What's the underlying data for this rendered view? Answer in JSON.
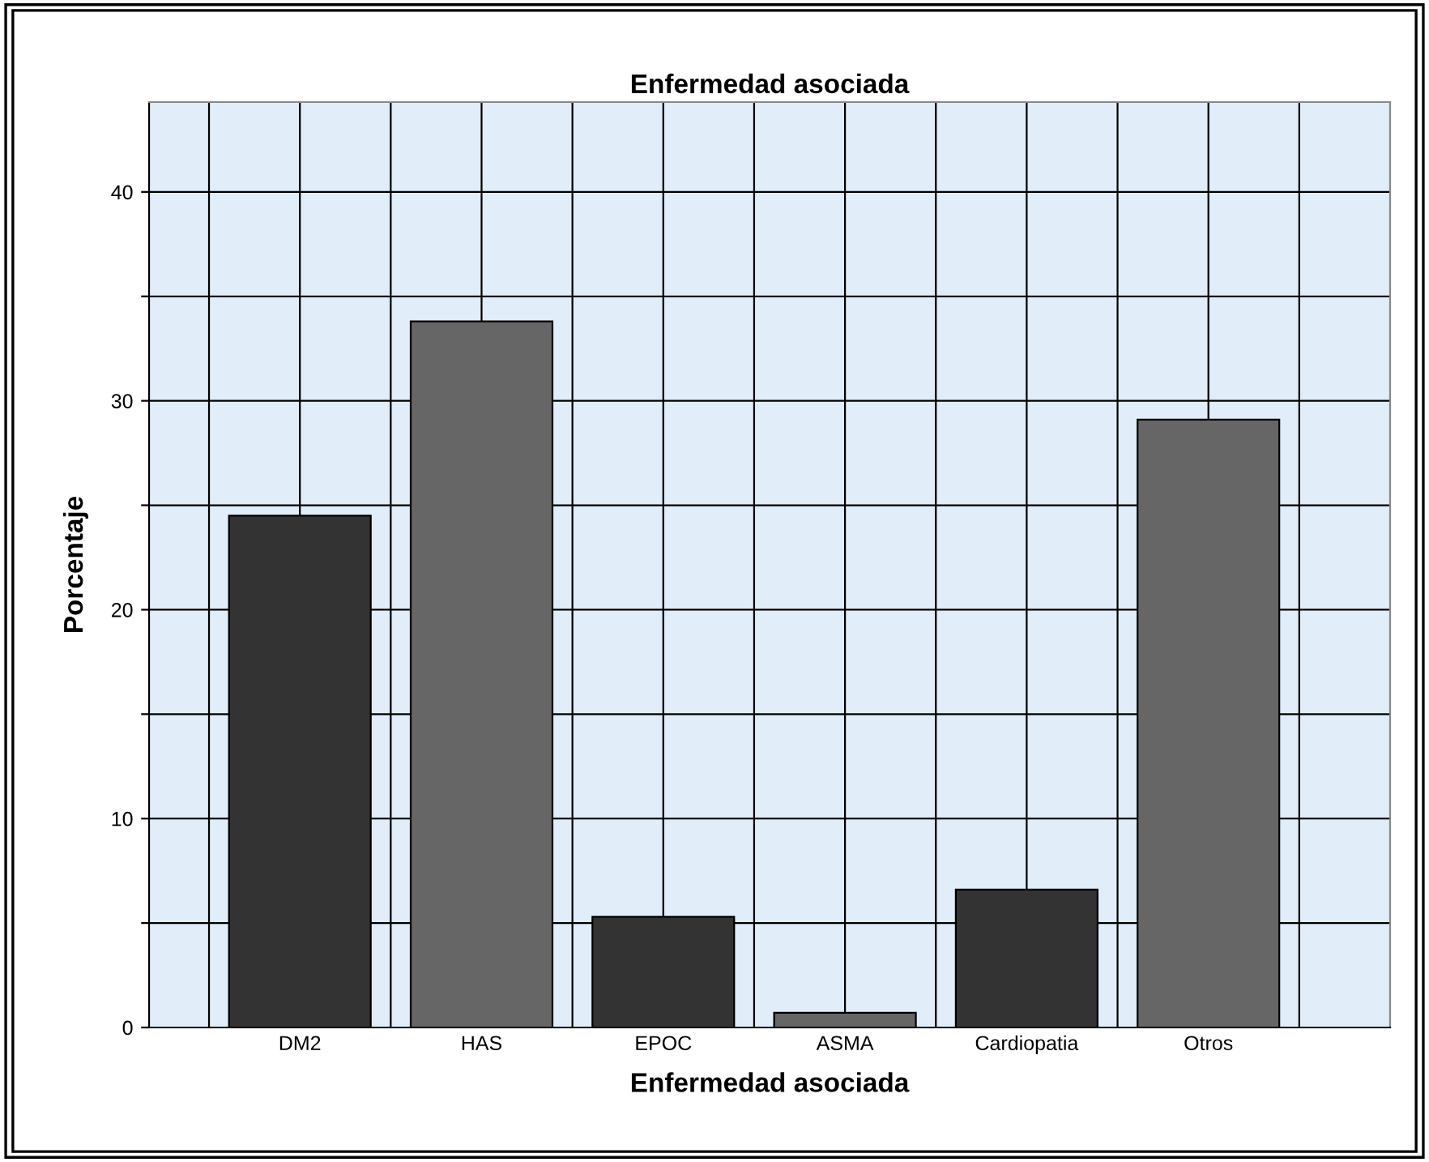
{
  "chart_data": {
    "type": "bar",
    "title": "Enfermedad asociada",
    "xlabel": "Enfermedad asociada",
    "ylabel": "Porcentaje",
    "categories": [
      "DM2",
      "HAS",
      "EPOC",
      "ASMA",
      "Cardiopatia",
      "Otros"
    ],
    "values": [
      24.5,
      33.8,
      5.3,
      0.7,
      6.6,
      29.1
    ],
    "colors": [
      "#333333",
      "#666666",
      "#333333",
      "#666666",
      "#333333",
      "#666666"
    ],
    "ylim": [
      0,
      44.3
    ],
    "yticks": [
      0,
      {
        "value": 5,
        "label": null
      },
      10,
      {
        "value": 15,
        "label": null
      },
      20,
      {
        "value": 25,
        "label": null
      },
      30,
      {
        "value": 35,
        "label": null
      },
      40
    ],
    "grid": true
  }
}
